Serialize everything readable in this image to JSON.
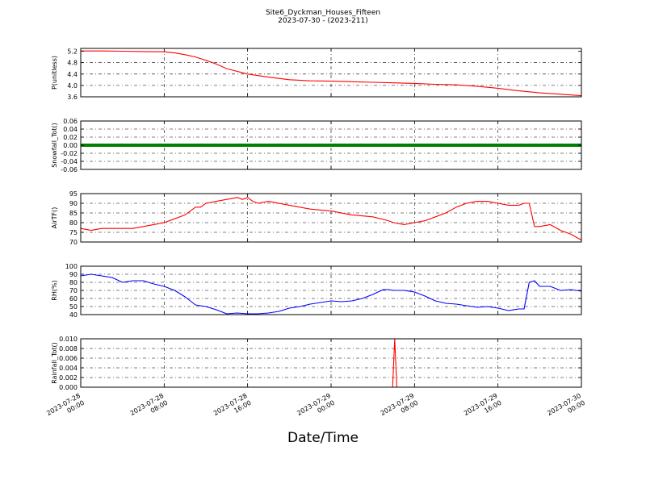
{
  "title": "Site6_Dyckman_Houses_Fifteen",
  "subtitle": "2023-07-30 - (2023-211)",
  "xlabel": "Date/Time",
  "chart_data": [
    {
      "type": "line",
      "ylabel": "P(unitless)",
      "ylim": [
        3.6,
        5.3
      ],
      "yticks": [
        "3.6",
        "4.0",
        "4.4",
        "4.8",
        "5.2"
      ],
      "grid": true,
      "series": [
        {
          "color": "#ff0000",
          "x": [
            0,
            2,
            4,
            6,
            8,
            9,
            10,
            11,
            12,
            13,
            14,
            16,
            18,
            20,
            22,
            24,
            26,
            28,
            30,
            32,
            34,
            36,
            38,
            40,
            42,
            44,
            46,
            48
          ],
          "y": [
            5.21,
            5.21,
            5.2,
            5.19,
            5.18,
            5.14,
            5.08,
            5.0,
            4.88,
            4.75,
            4.59,
            4.4,
            4.29,
            4.2,
            4.16,
            4.15,
            4.13,
            4.11,
            4.09,
            4.07,
            4.04,
            4.02,
            3.97,
            3.9,
            3.81,
            3.74,
            3.69,
            3.64
          ]
        }
      ]
    },
    {
      "type": "line",
      "ylabel": "Snowfall_Tot()",
      "ylim": [
        -0.06,
        0.06
      ],
      "yticks": [
        "-0.06",
        "-0.04",
        "-0.02",
        "0.00",
        "0.02",
        "0.04",
        "0.06"
      ],
      "grid": true,
      "series": [
        {
          "color": "#008000",
          "x": [
            0,
            48
          ],
          "y": [
            0,
            0
          ]
        }
      ]
    },
    {
      "type": "line",
      "ylabel": "AirTF()",
      "ylim": [
        70,
        95
      ],
      "yticks": [
        "70",
        "75",
        "80",
        "85",
        "90",
        "95"
      ],
      "grid": true,
      "series": [
        {
          "color": "#ff0000",
          "x": [
            0,
            1,
            2,
            3,
            4,
            5,
            6,
            7,
            8,
            9,
            10,
            11,
            11.5,
            12,
            13,
            14,
            15,
            15.5,
            16,
            16.5,
            17,
            18,
            20,
            22,
            24,
            26,
            28,
            29.5,
            30,
            31,
            32,
            33,
            34,
            35,
            36,
            37,
            38,
            39,
            40,
            41,
            42,
            42.5,
            43,
            43.5,
            44,
            45,
            46,
            47,
            48
          ],
          "y": [
            77,
            76,
            77,
            77,
            77,
            77,
            78,
            79,
            80,
            82,
            84,
            88,
            88,
            90,
            91,
            92,
            93,
            92,
            93,
            91,
            90,
            91,
            89,
            87,
            86,
            84,
            83,
            81,
            80,
            79,
            80,
            81,
            83,
            85,
            88,
            90,
            91,
            91,
            90,
            89,
            89,
            90,
            90,
            78,
            78,
            79,
            76,
            74,
            71
          ]
        }
      ]
    },
    {
      "type": "line",
      "ylabel": "RH(%)",
      "ylim": [
        40,
        100
      ],
      "yticks": [
        "40",
        "50",
        "60",
        "70",
        "80",
        "90",
        "100"
      ],
      "grid": true,
      "series": [
        {
          "color": "#0000ff",
          "x": [
            0,
            1,
            2,
            3,
            4,
            5,
            6,
            7,
            8,
            9,
            10,
            11,
            12,
            13,
            14,
            15,
            16,
            17,
            18,
            19,
            20,
            21,
            22,
            23,
            24,
            25,
            26,
            27,
            28,
            29,
            29.5,
            30,
            31,
            32,
            33,
            34,
            35,
            36,
            37,
            38,
            39,
            40,
            41,
            42,
            42.5,
            43,
            43.5,
            44,
            45,
            46,
            47,
            48
          ],
          "y": [
            88,
            90,
            88,
            86,
            80,
            82,
            82,
            78,
            75,
            70,
            62,
            52,
            50,
            46,
            41,
            42,
            41,
            41,
            42,
            44,
            48,
            50,
            53,
            55,
            57,
            56,
            57,
            60,
            65,
            71,
            71,
            70,
            70,
            68,
            63,
            57,
            54,
            53,
            51,
            49,
            50,
            48,
            45,
            47,
            47,
            80,
            82,
            75,
            75,
            70,
            71,
            69
          ]
        }
      ]
    },
    {
      "type": "line",
      "ylabel": "Rainfall_Tot()",
      "ylim": [
        0,
        0.01
      ],
      "yticks": [
        "0.000",
        "0.002",
        "0.004",
        "0.006",
        "0.008",
        "0.010"
      ],
      "grid": true,
      "series": [
        {
          "color": "#ff0000",
          "x": [
            0,
            29.9,
            30.1,
            30.3,
            48
          ],
          "y": [
            0,
            0,
            0.01,
            0,
            0
          ]
        }
      ]
    }
  ],
  "x_axis": {
    "range_hours": [
      0,
      48
    ],
    "tick_hours": [
      0,
      8,
      16,
      24,
      32,
      40,
      48
    ],
    "tick_labels": [
      [
        "2023-07-28",
        "00:00"
      ],
      [
        "2023-07-28",
        "08:00"
      ],
      [
        "2023-07-28",
        "16:00"
      ],
      [
        "2023-07-29",
        "00:00"
      ],
      [
        "2023-07-29",
        "08:00"
      ],
      [
        "2023-07-29",
        "16:00"
      ],
      [
        "2023-07-30",
        "00:00"
      ]
    ]
  }
}
